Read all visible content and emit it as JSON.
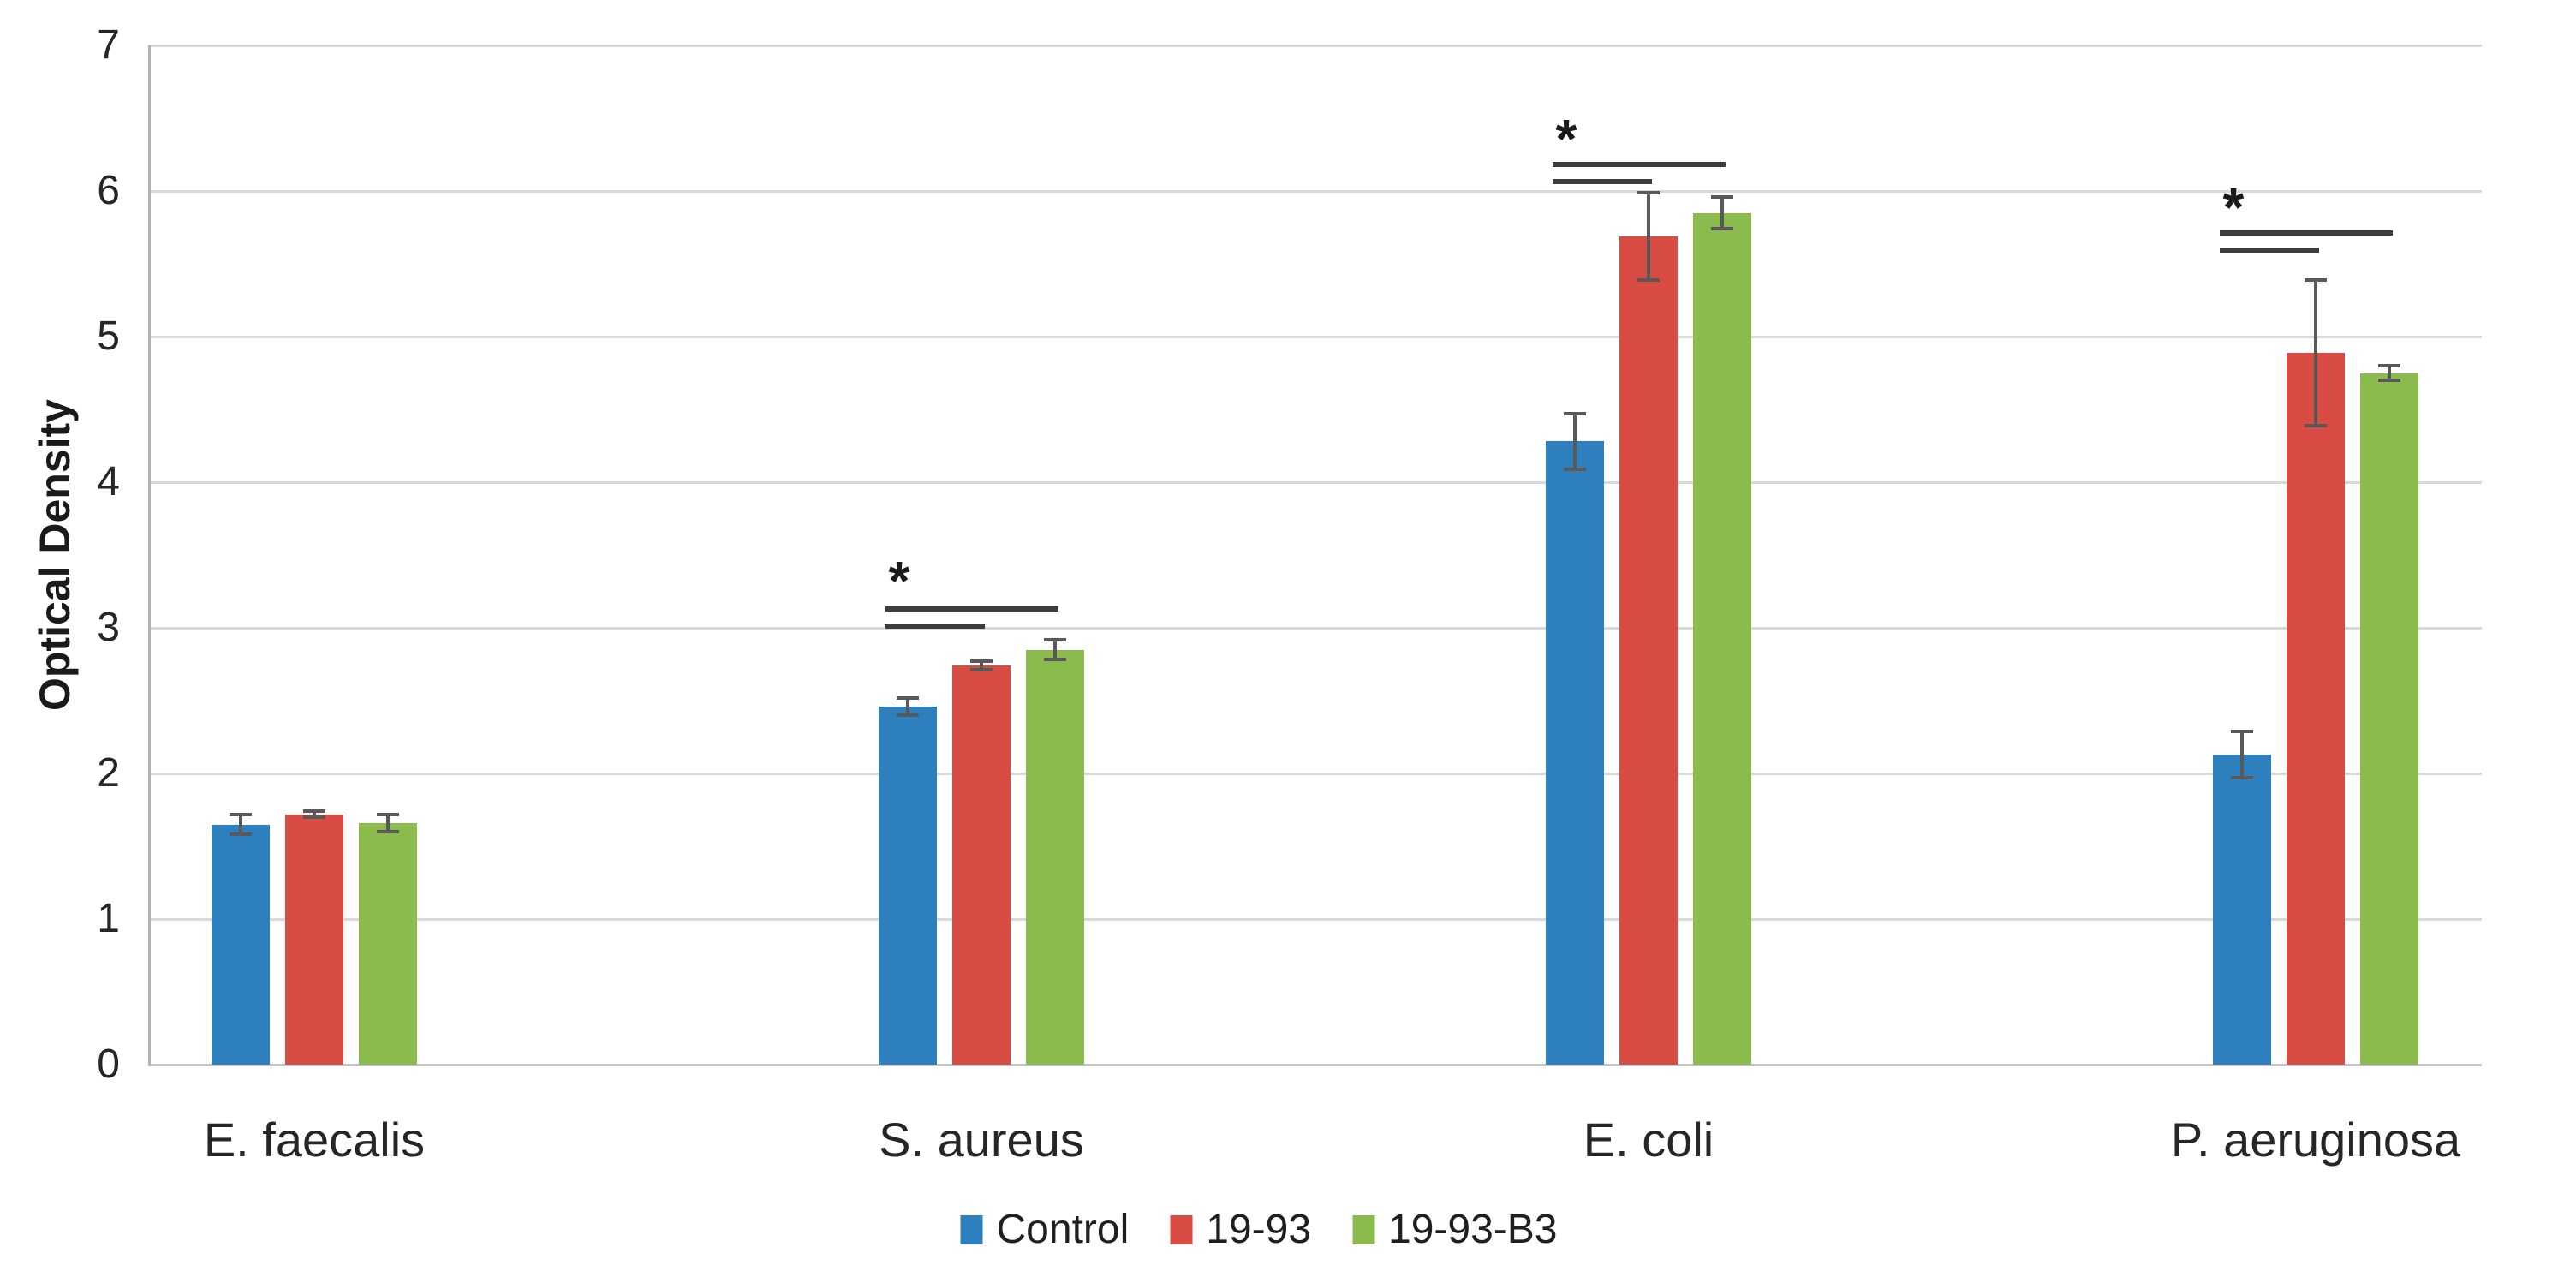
{
  "chart_data": {
    "type": "bar",
    "title": "",
    "xlabel": "",
    "ylabel": "Optical Density",
    "ylim": [
      0,
      7
    ],
    "yticks": [
      0,
      1,
      2,
      3,
      4,
      5,
      6,
      7
    ],
    "grid": true,
    "legend_position": "bottom",
    "categories": [
      "E. faecalis",
      "S. aureus",
      "E. coli",
      "P. aeruginosa"
    ],
    "series": [
      {
        "name": "Control",
        "color": "#2E7FBD",
        "values": [
          1.65,
          2.46,
          4.28,
          2.13
        ],
        "errors": [
          0.07,
          0.06,
          0.19,
          0.16
        ]
      },
      {
        "name": "19-93",
        "color": "#D94C44",
        "values": [
          1.72,
          2.74,
          5.69,
          4.89
        ],
        "errors": [
          0.02,
          0.03,
          0.3,
          0.5
        ]
      },
      {
        "name": "19-93-B3",
        "color": "#8BBA4D",
        "values": [
          1.66,
          2.85,
          5.85,
          4.75
        ],
        "errors": [
          0.06,
          0.07,
          0.11,
          0.05
        ]
      }
    ],
    "significance": [
      {
        "category": "S. aureus",
        "label": "*",
        "star_y": 3.38,
        "lines": [
          {
            "y": 3.15,
            "from_series": 0,
            "to_series": 2
          },
          {
            "y": 3.03,
            "from_series": 0,
            "to_series": 1
          }
        ]
      },
      {
        "category": "E. coli",
        "label": "*",
        "star_y": 6.42,
        "lines": [
          {
            "y": 6.2,
            "from_series": 0,
            "to_series": 2
          },
          {
            "y": 6.08,
            "from_series": 0,
            "to_series": 1
          }
        ]
      },
      {
        "category": "P. aeruginosa",
        "label": "*",
        "star_y": 5.95,
        "lines": [
          {
            "y": 5.73,
            "from_series": 0,
            "to_series": 2
          },
          {
            "y": 5.61,
            "from_series": 0,
            "to_series": 1
          }
        ]
      }
    ],
    "colors": {
      "gridline": "#D9D9D9",
      "baseline": "#C6C6C6",
      "axis_line": "#B3B3B3",
      "error_bar": "#595959",
      "sig_marker": "#3D3D3D",
      "tick_text": "#262626"
    }
  }
}
